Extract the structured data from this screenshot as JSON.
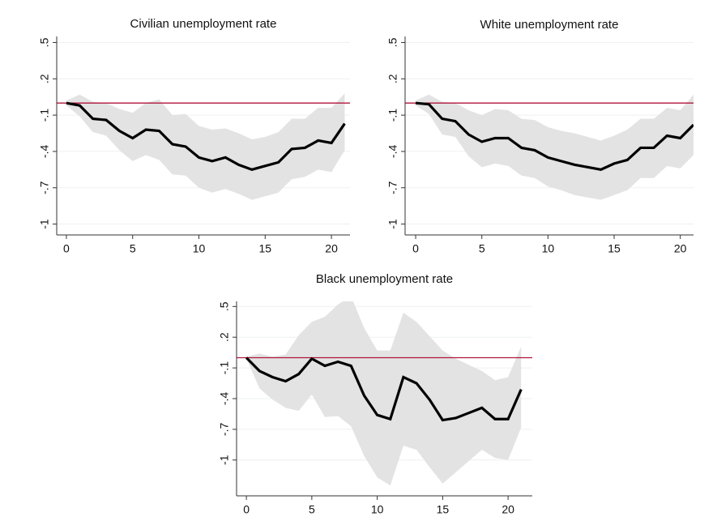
{
  "chart_data": [
    {
      "type": "line",
      "title": "Civilian unemployment rate",
      "x": [
        0,
        1,
        2,
        3,
        4,
        5,
        6,
        7,
        8,
        9,
        10,
        11,
        12,
        13,
        14,
        15,
        16,
        17,
        18,
        19,
        20,
        21
      ],
      "xlim": [
        -0.73,
        21.4
      ],
      "xticks": [
        0,
        5,
        10,
        15,
        20
      ],
      "ylim": [
        -1.09,
        0.55
      ],
      "yticks": [
        {
          "value": 0.5,
          "label": ".5"
        },
        {
          "value": 0.2,
          "label": ".2"
        },
        {
          "value": -0.1,
          "label": "-.1"
        },
        {
          "value": -0.4,
          "label": "-.4"
        },
        {
          "value": -0.7,
          "label": "-.7"
        },
        -1
      ],
      "grid": true,
      "series": [
        {
          "color": "#000000",
          "values": [
            0,
            -0.02,
            -0.13,
            -0.14,
            -0.23,
            -0.29,
            -0.22,
            -0.23,
            -0.34,
            -0.36,
            -0.45,
            -0.48,
            -0.45,
            -0.51,
            -0.55,
            -0.52,
            -0.49,
            -0.38,
            -0.37,
            -0.31,
            -0.33,
            -0.17
          ]
        }
      ],
      "band": {
        "color": "#e3e3e3",
        "upper": [
          0.02,
          0.07,
          0.01,
          0,
          -0.05,
          -0.08,
          0,
          0.03,
          -0.1,
          -0.09,
          -0.19,
          -0.22,
          -0.21,
          -0.25,
          -0.3,
          -0.28,
          -0.24,
          -0.13,
          -0.13,
          -0.04,
          -0.04,
          0.08
        ],
        "lower": [
          -0.02,
          -0.11,
          -0.24,
          -0.27,
          -0.39,
          -0.48,
          -0.43,
          -0.47,
          -0.59,
          -0.6,
          -0.7,
          -0.74,
          -0.71,
          -0.75,
          -0.8,
          -0.77,
          -0.74,
          -0.63,
          -0.61,
          -0.55,
          -0.57,
          -0.39
        ]
      },
      "reference_line": {
        "value": 0,
        "color": "#b0163b"
      }
    },
    {
      "type": "line",
      "title": "White unemployment rate",
      "x": [
        0,
        1,
        2,
        3,
        4,
        5,
        6,
        7,
        8,
        9,
        10,
        11,
        12,
        13,
        14,
        15,
        16,
        17,
        18,
        19,
        20,
        21
      ],
      "xlim": [
        -0.8,
        21
      ],
      "xticks": [
        0,
        5,
        10,
        15,
        20
      ],
      "ylim": [
        -1.09,
        0.55
      ],
      "yticks": [
        {
          "value": 0.5,
          "label": ".5"
        },
        {
          "value": 0.2,
          "label": ".2"
        },
        {
          "value": -0.1,
          "label": "-.1"
        },
        {
          "value": -0.4,
          "label": "-.4"
        },
        {
          "value": -0.7,
          "label": "-.7"
        },
        -1
      ],
      "grid": true,
      "series": [
        {
          "color": "#000000",
          "values": [
            0,
            -0.01,
            -0.13,
            -0.15,
            -0.26,
            -0.32,
            -0.29,
            -0.29,
            -0.37,
            -0.39,
            -0.45,
            -0.48,
            -0.51,
            -0.53,
            -0.55,
            -0.5,
            -0.47,
            -0.37,
            -0.37,
            -0.27,
            -0.29,
            -0.18
          ]
        }
      ],
      "band": {
        "color": "#e3e3e3",
        "upper": [
          0.02,
          0.07,
          0.01,
          0,
          -0.06,
          -0.1,
          -0.05,
          -0.06,
          -0.13,
          -0.14,
          -0.2,
          -0.23,
          -0.25,
          -0.28,
          -0.31,
          -0.27,
          -0.22,
          -0.13,
          -0.13,
          -0.04,
          -0.06,
          0.07
        ],
        "lower": [
          -0.02,
          -0.09,
          -0.26,
          -0.28,
          -0.44,
          -0.53,
          -0.5,
          -0.52,
          -0.6,
          -0.62,
          -0.69,
          -0.72,
          -0.76,
          -0.78,
          -0.8,
          -0.76,
          -0.72,
          -0.62,
          -0.62,
          -0.52,
          -0.54,
          -0.43
        ]
      },
      "reference_line": {
        "value": 0,
        "color": "#b0163b"
      }
    },
    {
      "type": "line",
      "title": "Black unemployment rate",
      "x": [
        0,
        1,
        2,
        3,
        4,
        5,
        6,
        7,
        8,
        9,
        10,
        11,
        12,
        13,
        14,
        15,
        16,
        17,
        18,
        19,
        20,
        21
      ],
      "xlim": [
        -0.75,
        21.85
      ],
      "xticks": [
        0,
        5,
        10,
        15,
        20
      ],
      "ylim": [
        -1.35,
        0.55
      ],
      "yticks": [
        {
          "value": 0.5,
          "label": ".5"
        },
        {
          "value": 0.2,
          "label": ".2"
        },
        {
          "value": -0.1,
          "label": "-.1"
        },
        {
          "value": -0.4,
          "label": "-.4"
        },
        {
          "value": -0.7,
          "label": "-.7"
        },
        -1
      ],
      "grid": true,
      "series": [
        {
          "color": "#000000",
          "values": [
            0,
            -0.13,
            -0.19,
            -0.23,
            -0.16,
            -0.01,
            -0.08,
            -0.04,
            -0.08,
            -0.37,
            -0.56,
            -0.6,
            -0.19,
            -0.25,
            -0.41,
            -0.61,
            -0.59,
            -0.54,
            -0.49,
            -0.6,
            -0.6,
            -0.31
          ]
        }
      ],
      "band": {
        "color": "#e3e3e3",
        "upper": [
          0.01,
          0.04,
          0.01,
          0.03,
          0.22,
          0.35,
          0.4,
          0.52,
          0.6,
          0.29,
          0.07,
          0.07,
          0.44,
          0.35,
          0.21,
          0.07,
          -0.01,
          -0.07,
          -0.13,
          -0.22,
          -0.19,
          0.11
        ],
        "lower": [
          -0.01,
          -0.3,
          -0.41,
          -0.49,
          -0.52,
          -0.36,
          -0.58,
          -0.57,
          -0.67,
          -0.96,
          -1.17,
          -1.25,
          -0.86,
          -0.9,
          -1.07,
          -1.23,
          -1.12,
          -1.01,
          -0.9,
          -0.98,
          -1,
          -0.68
        ]
      },
      "reference_line": {
        "value": 0,
        "color": "#b0163b"
      }
    }
  ]
}
